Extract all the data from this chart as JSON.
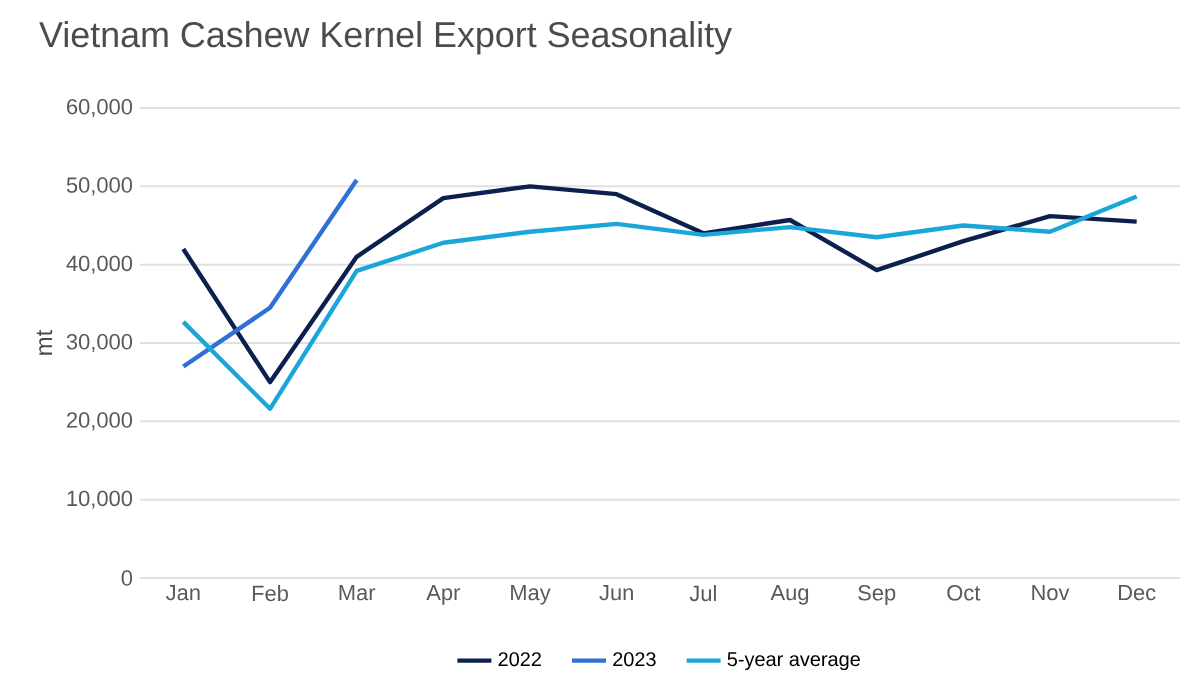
{
  "chart_data": {
    "type": "line",
    "title": "Vietnam Cashew Kernel Export Seasonality",
    "ylabel": "mt",
    "categories": [
      "Jan",
      "Feb",
      "Mar",
      "Apr",
      "May",
      "Jun",
      "Jul",
      "Aug",
      "Sep",
      "Oct",
      "Nov",
      "Dec"
    ],
    "series": [
      {
        "name": "2022",
        "color": "#0d1f4f",
        "values": [
          42000,
          25000,
          41000,
          48500,
          50000,
          49000,
          44000,
          45700,
          39300,
          43000,
          46200,
          45500
        ]
      },
      {
        "name": "2023",
        "color": "#2f6fd6",
        "values": [
          27000,
          34500,
          50800,
          null,
          null,
          null,
          null,
          null,
          null,
          null,
          null,
          null
        ]
      },
      {
        "name": "5-year average",
        "color": "#1aa6d9",
        "values": [
          32700,
          21600,
          39200,
          42800,
          44200,
          45200,
          43800,
          44800,
          43500,
          45000,
          44200,
          48700
        ]
      }
    ],
    "ylim": [
      0,
      60000
    ],
    "yticks": [
      {
        "value": 0,
        "label": "0"
      },
      {
        "value": 10000,
        "label": "10,000"
      },
      {
        "value": 20000,
        "label": "20,000"
      },
      {
        "value": 30000,
        "label": "30,000"
      },
      {
        "value": 40000,
        "label": "40,000"
      },
      {
        "value": 50000,
        "label": "50,000"
      },
      {
        "value": 60000,
        "label": "60,000"
      }
    ],
    "grid": "y",
    "legend": "bottom"
  }
}
